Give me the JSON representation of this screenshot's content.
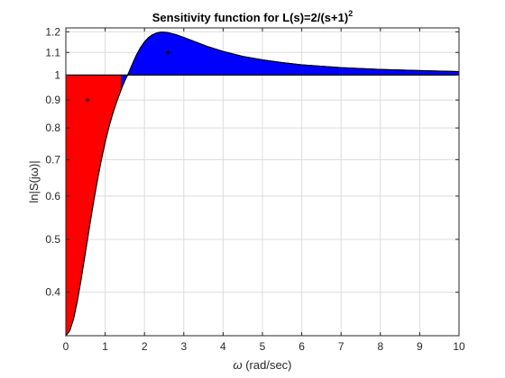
{
  "chart_data": {
    "type": "area",
    "title": "Sensitivity function for L(s)=2/(s+1)",
    "title_superscript": "2",
    "xlabel": "(rad/sec)",
    "xlabel_symbol": "ω",
    "ylabel": "ln|S(jω)|",
    "xlim": [
      0,
      10
    ],
    "ylim": [
      0.333,
      1.22
    ],
    "yscale": "log",
    "grid": true,
    "x_ticks": [
      "0",
      "1",
      "2",
      "3",
      "4",
      "5",
      "6",
      "7",
      "8",
      "9",
      "10"
    ],
    "x_tick_values": [
      0,
      1,
      2,
      3,
      4,
      5,
      6,
      7,
      8,
      9,
      10
    ],
    "y_ticks": [
      "0.4",
      "0.5",
      "0.6",
      "0.7",
      "0.8",
      "0.9",
      "1",
      "1.1",
      "1.2"
    ],
    "y_tick_values": [
      0.4,
      0.5,
      0.6,
      0.7,
      0.8,
      0.9,
      1.0,
      1.1,
      1.2
    ],
    "reference_level": 1,
    "regions": [
      {
        "range": [
          0,
          1.414
        ],
        "color": "#ff0000",
        "marker": [
          0.55,
          0.9
        ]
      },
      {
        "range": [
          1.414,
          10
        ],
        "color": "#0000ff",
        "marker": [
          2.6,
          1.1
        ]
      }
    ],
    "series": [
      {
        "x": [
          0,
          0.1,
          0.2,
          0.3,
          0.4,
          0.5,
          0.6,
          0.7,
          0.8,
          0.9,
          1.0,
          1.1,
          1.2,
          1.3,
          1.414,
          1.5,
          1.6,
          1.7,
          1.8,
          1.9,
          2.0,
          2.1,
          2.2,
          2.3,
          2.4,
          2.5,
          2.6,
          2.8,
          3.0,
          3.3,
          3.6,
          4.0,
          4.5,
          5.0,
          5.5,
          6.0,
          7.0,
          8.0,
          9.0,
          10.0
        ],
        "values": [
          0.333,
          0.34,
          0.358,
          0.388,
          0.427,
          0.474,
          0.526,
          0.582,
          0.64,
          0.697,
          0.753,
          0.805,
          0.853,
          0.896,
          0.943,
          0.976,
          1.01,
          1.051,
          1.09,
          1.123,
          1.15,
          1.171,
          1.185,
          1.194,
          1.198,
          1.198,
          1.196,
          1.186,
          1.172,
          1.15,
          1.128,
          1.105,
          1.082,
          1.066,
          1.054,
          1.044,
          1.032,
          1.024,
          1.019,
          1.015
        ]
      }
    ]
  }
}
